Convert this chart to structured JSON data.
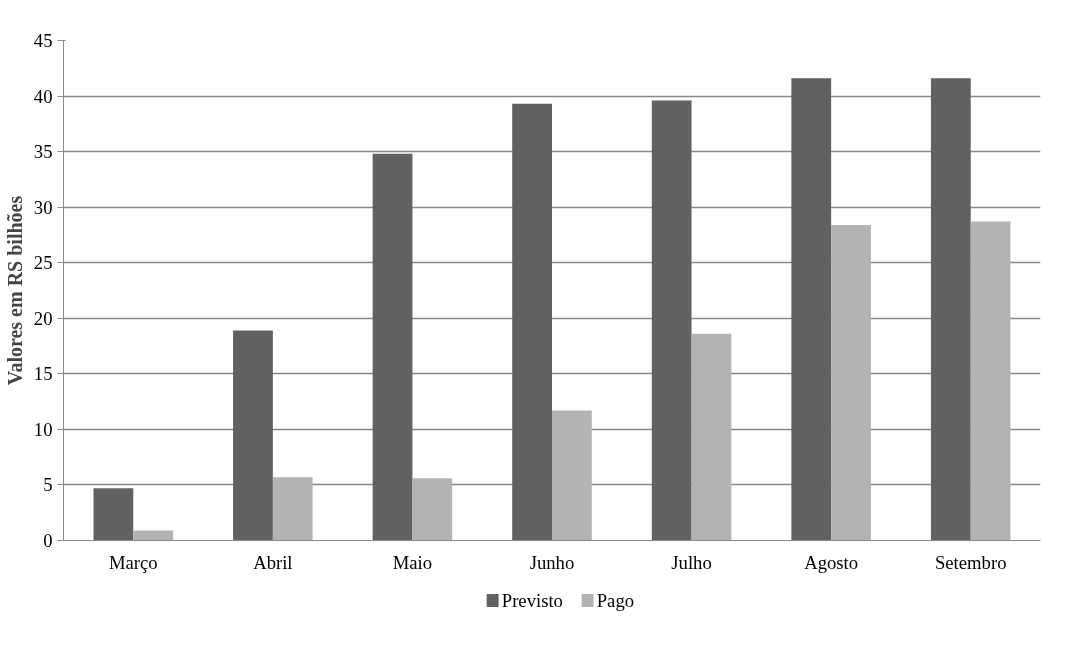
{
  "chart_data": {
    "type": "bar",
    "ylabel": "Valores em RS bilhões",
    "categories": [
      "Março",
      "Abril",
      "Maio",
      "Junho",
      "Julho",
      "Agosto",
      "Setembro"
    ],
    "series": [
      {
        "name": "Previsto",
        "color": "#616161",
        "values": [
          4.7,
          18.9,
          34.8,
          39.3,
          39.6,
          41.6,
          41.6
        ]
      },
      {
        "name": "Pago",
        "color": "#b3b3b3",
        "values": [
          0.9,
          5.7,
          5.6,
          11.7,
          18.6,
          28.4,
          28.7
        ]
      }
    ],
    "ylim": [
      0,
      45
    ],
    "yticks": [
      0,
      5,
      10,
      15,
      20,
      25,
      30,
      35,
      40,
      45
    ],
    "grid": "y",
    "legend": "bottom"
  }
}
